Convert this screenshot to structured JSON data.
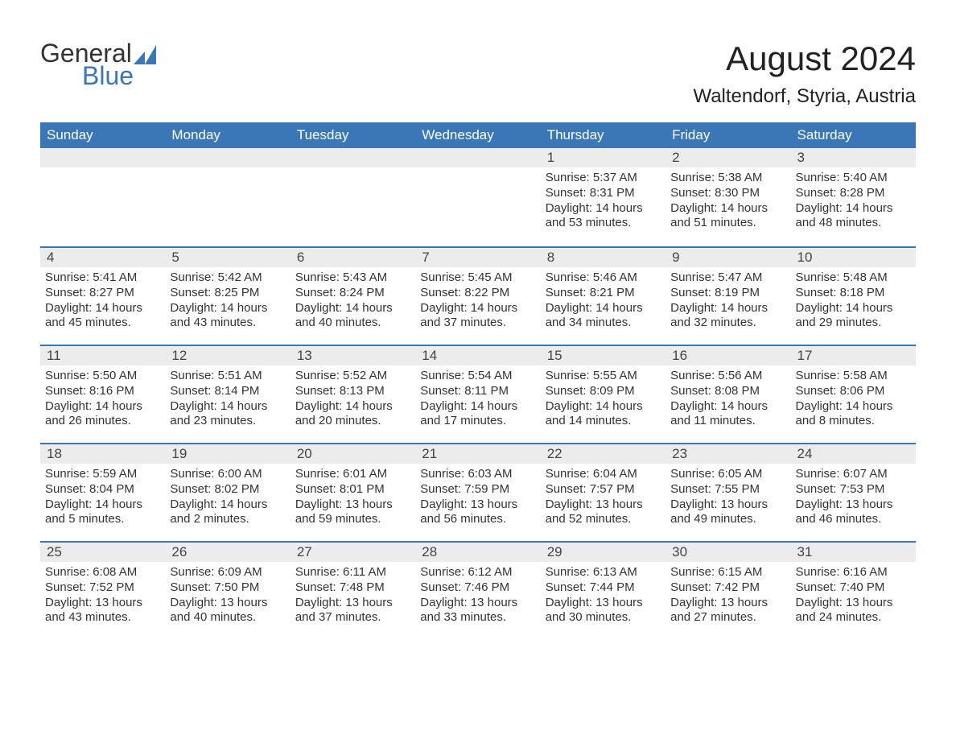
{
  "logo": {
    "general": "General",
    "blue": "Blue",
    "icon_color": "#3b77b6"
  },
  "title": "August 2024",
  "location": "Waltendorf, Styria, Austria",
  "colors": {
    "header_bg": "#3b77b6",
    "header_text": "#ffffff",
    "daynum_bg": "#ececec",
    "daynum_border": "#3b77b6",
    "text": "#333333",
    "background": "#ffffff"
  },
  "weekdays": [
    "Sunday",
    "Monday",
    "Tuesday",
    "Wednesday",
    "Thursday",
    "Friday",
    "Saturday"
  ],
  "weeks": [
    [
      {
        "empty": true
      },
      {
        "empty": true
      },
      {
        "empty": true
      },
      {
        "empty": true
      },
      {
        "n": "1",
        "sr": "Sunrise: 5:37 AM",
        "ss": "Sunset: 8:31 PM",
        "dl": "Daylight: 14 hours and 53 minutes."
      },
      {
        "n": "2",
        "sr": "Sunrise: 5:38 AM",
        "ss": "Sunset: 8:30 PM",
        "dl": "Daylight: 14 hours and 51 minutes."
      },
      {
        "n": "3",
        "sr": "Sunrise: 5:40 AM",
        "ss": "Sunset: 8:28 PM",
        "dl": "Daylight: 14 hours and 48 minutes."
      }
    ],
    [
      {
        "n": "4",
        "sr": "Sunrise: 5:41 AM",
        "ss": "Sunset: 8:27 PM",
        "dl": "Daylight: 14 hours and 45 minutes."
      },
      {
        "n": "5",
        "sr": "Sunrise: 5:42 AM",
        "ss": "Sunset: 8:25 PM",
        "dl": "Daylight: 14 hours and 43 minutes."
      },
      {
        "n": "6",
        "sr": "Sunrise: 5:43 AM",
        "ss": "Sunset: 8:24 PM",
        "dl": "Daylight: 14 hours and 40 minutes."
      },
      {
        "n": "7",
        "sr": "Sunrise: 5:45 AM",
        "ss": "Sunset: 8:22 PM",
        "dl": "Daylight: 14 hours and 37 minutes."
      },
      {
        "n": "8",
        "sr": "Sunrise: 5:46 AM",
        "ss": "Sunset: 8:21 PM",
        "dl": "Daylight: 14 hours and 34 minutes."
      },
      {
        "n": "9",
        "sr": "Sunrise: 5:47 AM",
        "ss": "Sunset: 8:19 PM",
        "dl": "Daylight: 14 hours and 32 minutes."
      },
      {
        "n": "10",
        "sr": "Sunrise: 5:48 AM",
        "ss": "Sunset: 8:18 PM",
        "dl": "Daylight: 14 hours and 29 minutes."
      }
    ],
    [
      {
        "n": "11",
        "sr": "Sunrise: 5:50 AM",
        "ss": "Sunset: 8:16 PM",
        "dl": "Daylight: 14 hours and 26 minutes."
      },
      {
        "n": "12",
        "sr": "Sunrise: 5:51 AM",
        "ss": "Sunset: 8:14 PM",
        "dl": "Daylight: 14 hours and 23 minutes."
      },
      {
        "n": "13",
        "sr": "Sunrise: 5:52 AM",
        "ss": "Sunset: 8:13 PM",
        "dl": "Daylight: 14 hours and 20 minutes."
      },
      {
        "n": "14",
        "sr": "Sunrise: 5:54 AM",
        "ss": "Sunset: 8:11 PM",
        "dl": "Daylight: 14 hours and 17 minutes."
      },
      {
        "n": "15",
        "sr": "Sunrise: 5:55 AM",
        "ss": "Sunset: 8:09 PM",
        "dl": "Daylight: 14 hours and 14 minutes."
      },
      {
        "n": "16",
        "sr": "Sunrise: 5:56 AM",
        "ss": "Sunset: 8:08 PM",
        "dl": "Daylight: 14 hours and 11 minutes."
      },
      {
        "n": "17",
        "sr": "Sunrise: 5:58 AM",
        "ss": "Sunset: 8:06 PM",
        "dl": "Daylight: 14 hours and 8 minutes."
      }
    ],
    [
      {
        "n": "18",
        "sr": "Sunrise: 5:59 AM",
        "ss": "Sunset: 8:04 PM",
        "dl": "Daylight: 14 hours and 5 minutes."
      },
      {
        "n": "19",
        "sr": "Sunrise: 6:00 AM",
        "ss": "Sunset: 8:02 PM",
        "dl": "Daylight: 14 hours and 2 minutes."
      },
      {
        "n": "20",
        "sr": "Sunrise: 6:01 AM",
        "ss": "Sunset: 8:01 PM",
        "dl": "Daylight: 13 hours and 59 minutes."
      },
      {
        "n": "21",
        "sr": "Sunrise: 6:03 AM",
        "ss": "Sunset: 7:59 PM",
        "dl": "Daylight: 13 hours and 56 minutes."
      },
      {
        "n": "22",
        "sr": "Sunrise: 6:04 AM",
        "ss": "Sunset: 7:57 PM",
        "dl": "Daylight: 13 hours and 52 minutes."
      },
      {
        "n": "23",
        "sr": "Sunrise: 6:05 AM",
        "ss": "Sunset: 7:55 PM",
        "dl": "Daylight: 13 hours and 49 minutes."
      },
      {
        "n": "24",
        "sr": "Sunrise: 6:07 AM",
        "ss": "Sunset: 7:53 PM",
        "dl": "Daylight: 13 hours and 46 minutes."
      }
    ],
    [
      {
        "n": "25",
        "sr": "Sunrise: 6:08 AM",
        "ss": "Sunset: 7:52 PM",
        "dl": "Daylight: 13 hours and 43 minutes."
      },
      {
        "n": "26",
        "sr": "Sunrise: 6:09 AM",
        "ss": "Sunset: 7:50 PM",
        "dl": "Daylight: 13 hours and 40 minutes."
      },
      {
        "n": "27",
        "sr": "Sunrise: 6:11 AM",
        "ss": "Sunset: 7:48 PM",
        "dl": "Daylight: 13 hours and 37 minutes."
      },
      {
        "n": "28",
        "sr": "Sunrise: 6:12 AM",
        "ss": "Sunset: 7:46 PM",
        "dl": "Daylight: 13 hours and 33 minutes."
      },
      {
        "n": "29",
        "sr": "Sunrise: 6:13 AM",
        "ss": "Sunset: 7:44 PM",
        "dl": "Daylight: 13 hours and 30 minutes."
      },
      {
        "n": "30",
        "sr": "Sunrise: 6:15 AM",
        "ss": "Sunset: 7:42 PM",
        "dl": "Daylight: 13 hours and 27 minutes."
      },
      {
        "n": "31",
        "sr": "Sunrise: 6:16 AM",
        "ss": "Sunset: 7:40 PM",
        "dl": "Daylight: 13 hours and 24 minutes."
      }
    ]
  ]
}
